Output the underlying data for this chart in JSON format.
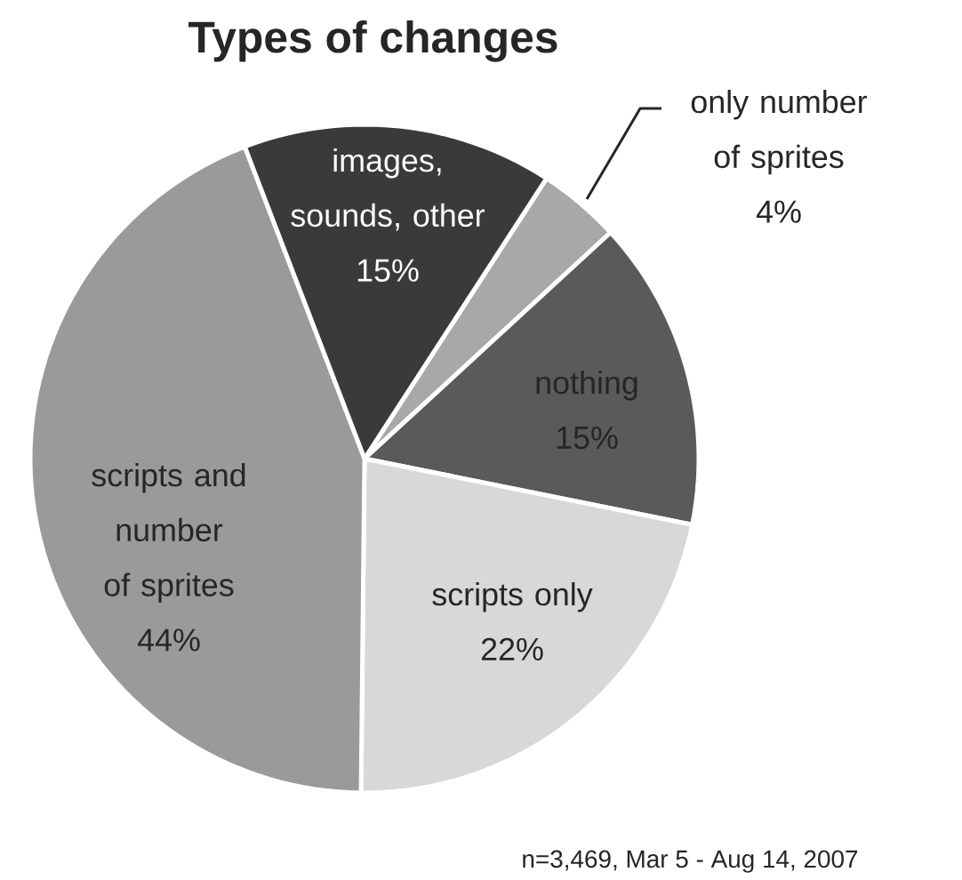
{
  "chart_data": {
    "type": "pie",
    "title": "Types of  changes",
    "categories": [
      "only number of sprites",
      "nothing",
      "scripts only",
      "scripts and number of sprites",
      "images, sounds, other"
    ],
    "values": [
      4,
      15,
      22,
      44,
      15
    ],
    "value_labels": [
      "4%",
      "15%",
      "22%",
      "44%",
      "15%"
    ],
    "colors": [
      "#a8a8a8",
      "#5a5a5a",
      "#d8d8d8",
      "#9a9a9a",
      "#3a3a3a"
    ],
    "annotations": [
      "n=3,469, Mar 5 - Aug 14, 2007"
    ]
  }
}
